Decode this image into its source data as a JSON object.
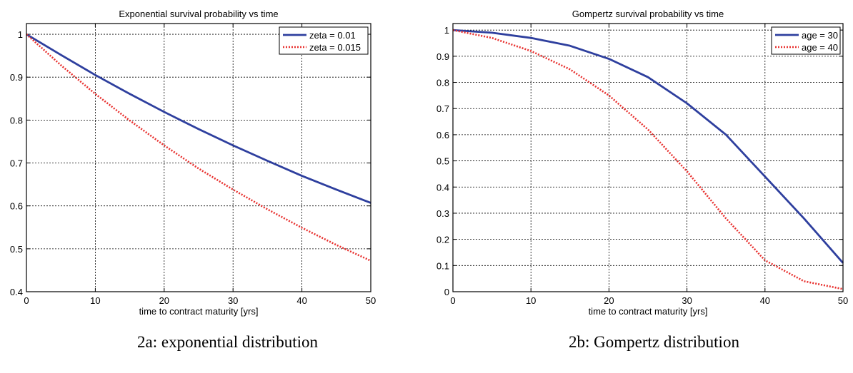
{
  "chart_data": [
    {
      "type": "line",
      "title": "Exponential survival probability vs time",
      "xlabel": "time to contract maturity [yrs]",
      "ylabel": "",
      "xlim": [
        0,
        50
      ],
      "ylim": [
        0.4,
        1.025
      ],
      "x_ticks": [
        0,
        10,
        20,
        30,
        40,
        50
      ],
      "y_ticks": [
        0.4,
        0.5,
        0.6,
        0.7,
        0.8,
        0.9,
        1
      ],
      "x_tick_labels": [
        "0",
        "10",
        "20",
        "30",
        "40",
        "50"
      ],
      "y_tick_labels": [
        "0.4",
        "0.5",
        "0.6",
        "0.7",
        "0.8",
        "0.9",
        "1"
      ],
      "grid": true,
      "legend_position": "top-right",
      "caption": "2a: exponential distribution",
      "x": [
        0,
        5,
        10,
        15,
        20,
        25,
        30,
        35,
        40,
        45,
        50
      ],
      "series": [
        {
          "name": "zeta = 0.01",
          "color": "#2e3f9e",
          "style": "solid",
          "values": [
            1.0,
            0.952,
            0.905,
            0.861,
            0.819,
            0.779,
            0.741,
            0.705,
            0.67,
            0.638,
            0.607
          ]
        },
        {
          "name": "zeta = 0.015",
          "color": "#e8312f",
          "style": "dotted",
          "values": [
            1.0,
            0.928,
            0.861,
            0.799,
            0.741,
            0.687,
            0.638,
            0.592,
            0.549,
            0.509,
            0.472
          ]
        }
      ]
    },
    {
      "type": "line",
      "title": "Gompertz survival probability vs time",
      "xlabel": "time to contract maturity [yrs]",
      "ylabel": "",
      "xlim": [
        0,
        50
      ],
      "ylim": [
        0,
        1.025
      ],
      "x_ticks": [
        0,
        10,
        20,
        30,
        40,
        50
      ],
      "y_ticks": [
        0,
        0.1,
        0.2,
        0.3,
        0.4,
        0.5,
        0.6,
        0.7,
        0.8,
        0.9,
        1
      ],
      "x_tick_labels": [
        "0",
        "10",
        "20",
        "30",
        "40",
        "50"
      ],
      "y_tick_labels": [
        "0",
        "0.1",
        "0.2",
        "0.3",
        "0.4",
        "0.5",
        "0.6",
        "0.7",
        "0.8",
        "0.9",
        "1"
      ],
      "grid": true,
      "legend_position": "top-right",
      "caption": "2b: Gompertz distribution",
      "x": [
        0,
        5,
        10,
        15,
        20,
        25,
        30,
        35,
        40,
        45,
        50
      ],
      "series": [
        {
          "name": "age = 30",
          "color": "#2e3f9e",
          "style": "solid",
          "values": [
            1.0,
            0.99,
            0.97,
            0.94,
            0.89,
            0.82,
            0.72,
            0.6,
            0.44,
            0.28,
            0.11
          ]
        },
        {
          "name": "age = 40",
          "color": "#e8312f",
          "style": "dotted",
          "values": [
            1.0,
            0.97,
            0.92,
            0.85,
            0.75,
            0.62,
            0.46,
            0.28,
            0.12,
            0.04,
            0.01
          ]
        }
      ]
    }
  ]
}
